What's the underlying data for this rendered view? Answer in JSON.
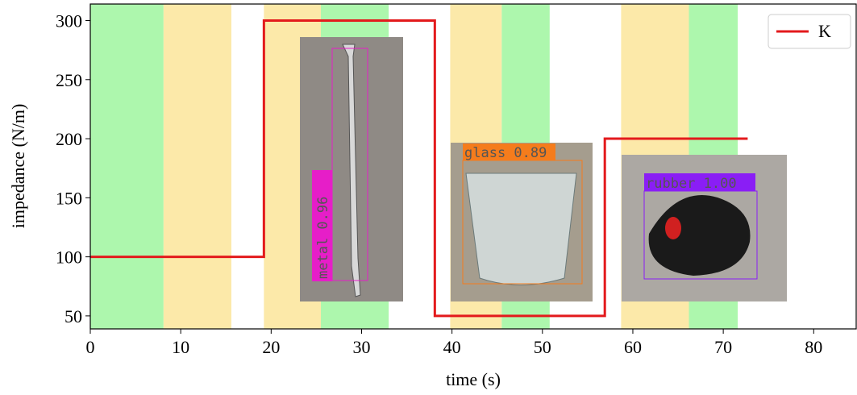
{
  "chart_data": {
    "type": "line",
    "x_label": "time (s)",
    "y_label": "impedance (N/m)",
    "x": [
      0,
      19.2,
      19.2,
      38.1,
      38.1,
      56.9,
      56.9,
      72.7
    ],
    "series": [
      {
        "name": "K",
        "color": "#e31a1c",
        "values": [
          100,
          100,
          300,
          300,
          50,
          50,
          200,
          200
        ]
      }
    ],
    "spans": [
      {
        "start": 0,
        "end": 8.1,
        "color": "#adf7ad"
      },
      {
        "start": 8.1,
        "end": 15.6,
        "color": "#fce9a9"
      },
      {
        "start": 19.2,
        "end": 25.5,
        "color": "#fce9a9"
      },
      {
        "start": 25.5,
        "end": 33.0,
        "color": "#adf7ad"
      },
      {
        "start": 39.8,
        "end": 45.5,
        "color": "#fce9a9"
      },
      {
        "start": 45.5,
        "end": 50.8,
        "color": "#adf7ad"
      },
      {
        "start": 58.7,
        "end": 66.2,
        "color": "#fce9a9"
      },
      {
        "start": 66.2,
        "end": 71.6,
        "color": "#adf7ad"
      }
    ],
    "annotations": [
      {
        "text": "metal 0.96",
        "color": "#e61ec8"
      },
      {
        "text": "glass 0.89",
        "color": "#f57c1c"
      },
      {
        "text": "rubber 1.00",
        "color": "#8a1ef5"
      }
    ],
    "xlim": [
      0,
      84.7
    ],
    "ylim": [
      39,
      314
    ],
    "xticks": [
      0,
      10,
      20,
      30,
      40,
      50,
      60,
      70,
      80
    ],
    "yticks": [
      50,
      100,
      150,
      200,
      250,
      300
    ],
    "legend": "upper right"
  }
}
